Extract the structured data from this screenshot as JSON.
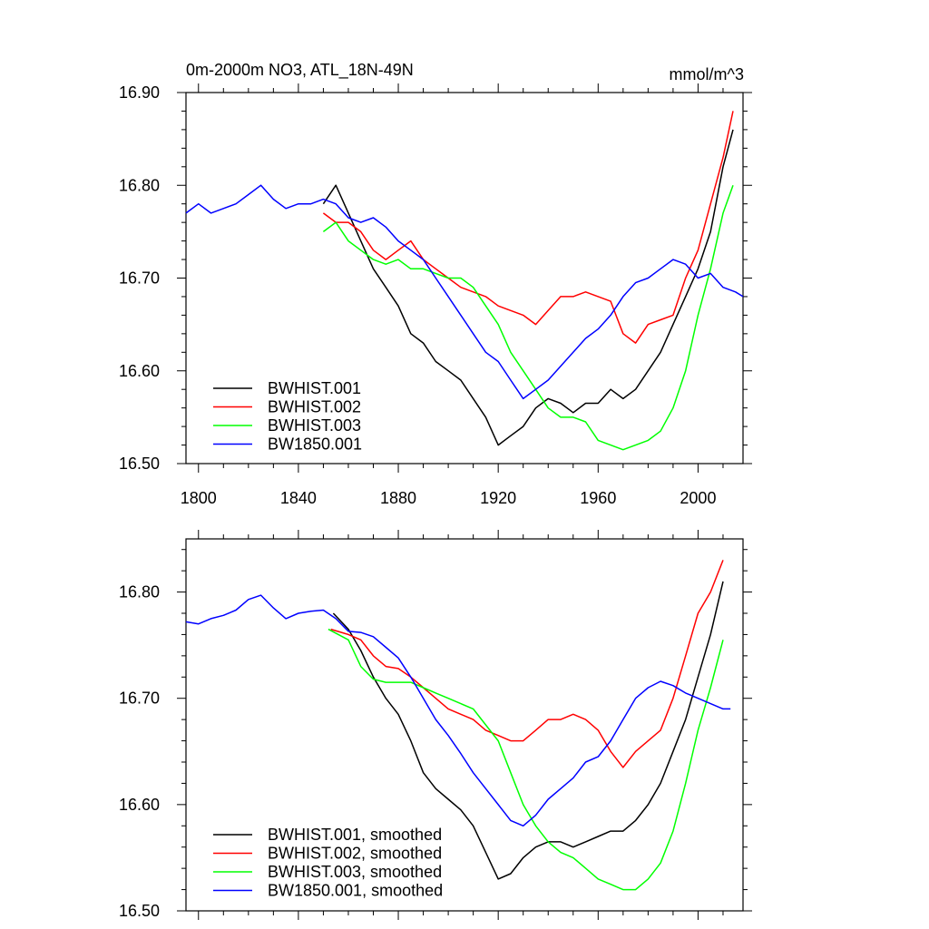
{
  "chart_data": [
    {
      "type": "line",
      "title": "0m-2000m NO3, ATL_18N-49N",
      "units": "mmol/m^3",
      "xlim": [
        1795,
        2018
      ],
      "ylim": [
        16.5,
        16.9
      ],
      "x_ticks": [
        1800,
        1840,
        1880,
        1920,
        1960,
        2000
      ],
      "x_tick_labels": [
        "1800",
        "1840",
        "1880",
        "1920",
        "1960",
        "2000"
      ],
      "y_ticks": [
        16.5,
        16.6,
        16.7,
        16.8,
        16.9
      ],
      "y_tick_labels": [
        "16.50",
        "16.60",
        "16.70",
        "16.80",
        "16.90"
      ],
      "legend_position": "bottom-left",
      "series": [
        {
          "name": "BWHIST.001",
          "color": "#000000",
          "x": [
            1850,
            1855,
            1860,
            1865,
            1870,
            1875,
            1880,
            1885,
            1890,
            1895,
            1900,
            1905,
            1910,
            1915,
            1920,
            1925,
            1930,
            1935,
            1940,
            1945,
            1950,
            1955,
            1960,
            1965,
            1970,
            1975,
            1980,
            1985,
            1990,
            1995,
            2000,
            2005,
            2010,
            2014
          ],
          "values": [
            16.78,
            16.8,
            16.77,
            16.74,
            16.71,
            16.69,
            16.67,
            16.64,
            16.63,
            16.61,
            16.6,
            16.59,
            16.57,
            16.55,
            16.52,
            16.53,
            16.54,
            16.56,
            16.57,
            16.565,
            16.555,
            16.565,
            16.565,
            16.58,
            16.57,
            16.58,
            16.6,
            16.62,
            16.65,
            16.68,
            16.71,
            16.75,
            16.82,
            16.86
          ]
        },
        {
          "name": "BWHIST.002",
          "color": "#ff0000",
          "x": [
            1850,
            1855,
            1860,
            1865,
            1870,
            1875,
            1880,
            1885,
            1890,
            1895,
            1900,
            1905,
            1910,
            1915,
            1920,
            1925,
            1930,
            1935,
            1940,
            1945,
            1950,
            1955,
            1960,
            1965,
            1970,
            1975,
            1980,
            1985,
            1990,
            1995,
            2000,
            2005,
            2010,
            2014
          ],
          "values": [
            16.77,
            16.76,
            16.76,
            16.75,
            16.73,
            16.72,
            16.73,
            16.74,
            16.72,
            16.71,
            16.7,
            16.69,
            16.685,
            16.68,
            16.67,
            16.665,
            16.66,
            16.65,
            16.665,
            16.68,
            16.68,
            16.685,
            16.68,
            16.675,
            16.64,
            16.63,
            16.65,
            16.655,
            16.66,
            16.7,
            16.73,
            16.78,
            16.83,
            16.88
          ]
        },
        {
          "name": "BWHIST.003",
          "color": "#00ff00",
          "x": [
            1850,
            1855,
            1860,
            1865,
            1870,
            1875,
            1880,
            1885,
            1890,
            1895,
            1900,
            1905,
            1910,
            1915,
            1920,
            1925,
            1930,
            1935,
            1940,
            1945,
            1950,
            1955,
            1960,
            1965,
            1970,
            1975,
            1980,
            1985,
            1990,
            1995,
            2000,
            2005,
            2010,
            2014
          ],
          "values": [
            16.75,
            16.76,
            16.74,
            16.73,
            16.72,
            16.715,
            16.72,
            16.71,
            16.71,
            16.705,
            16.7,
            16.7,
            16.69,
            16.67,
            16.65,
            16.62,
            16.6,
            16.58,
            16.56,
            16.55,
            16.55,
            16.545,
            16.525,
            16.52,
            16.515,
            16.52,
            16.525,
            16.535,
            16.56,
            16.6,
            16.66,
            16.71,
            16.77,
            16.8
          ]
        },
        {
          "name": "BW1850.001",
          "color": "#0000ff",
          "x": [
            1795,
            1800,
            1805,
            1810,
            1815,
            1820,
            1825,
            1830,
            1835,
            1840,
            1845,
            1850,
            1855,
            1860,
            1865,
            1870,
            1875,
            1880,
            1885,
            1890,
            1895,
            1900,
            1905,
            1910,
            1915,
            1920,
            1925,
            1930,
            1935,
            1940,
            1945,
            1950,
            1955,
            1960,
            1965,
            1970,
            1975,
            1980,
            1985,
            1990,
            1995,
            2000,
            2005,
            2010,
            2015,
            2018
          ],
          "values": [
            16.77,
            16.78,
            16.77,
            16.775,
            16.78,
            16.79,
            16.8,
            16.785,
            16.775,
            16.78,
            16.78,
            16.785,
            16.78,
            16.765,
            16.76,
            16.765,
            16.755,
            16.74,
            16.73,
            16.72,
            16.7,
            16.68,
            16.66,
            16.64,
            16.62,
            16.61,
            16.59,
            16.57,
            16.58,
            16.59,
            16.605,
            16.62,
            16.635,
            16.645,
            16.66,
            16.68,
            16.695,
            16.7,
            16.71,
            16.72,
            16.715,
            16.7,
            16.705,
            16.69,
            16.685,
            16.68
          ]
        }
      ]
    },
    {
      "type": "line",
      "title": "",
      "xlim": [
        1795,
        2018
      ],
      "ylim": [
        16.5,
        16.85
      ],
      "x_ticks": [
        1800,
        1840,
        1880,
        1920,
        1960,
        2000
      ],
      "y_ticks": [
        16.5,
        16.6,
        16.7,
        16.8
      ],
      "y_tick_labels": [
        "16.50",
        "16.60",
        "16.70",
        "16.80"
      ],
      "legend_position": "bottom-left",
      "series": [
        {
          "name": "BWHIST.001, smoothed",
          "color": "#000000",
          "x": [
            1854,
            1860,
            1865,
            1870,
            1875,
            1880,
            1885,
            1890,
            1895,
            1900,
            1905,
            1910,
            1915,
            1920,
            1925,
            1930,
            1935,
            1940,
            1945,
            1950,
            1955,
            1960,
            1965,
            1970,
            1975,
            1980,
            1985,
            1990,
            1995,
            2000,
            2005,
            2010
          ],
          "values": [
            16.78,
            16.765,
            16.745,
            16.72,
            16.7,
            16.685,
            16.66,
            16.63,
            16.615,
            16.605,
            16.595,
            16.58,
            16.555,
            16.53,
            16.535,
            16.55,
            16.56,
            16.565,
            16.565,
            16.56,
            16.565,
            16.57,
            16.575,
            16.575,
            16.585,
            16.6,
            16.62,
            16.65,
            16.68,
            16.72,
            16.76,
            16.81
          ]
        },
        {
          "name": "BWHIST.002, smoothed",
          "color": "#ff0000",
          "x": [
            1853,
            1860,
            1865,
            1870,
            1875,
            1880,
            1885,
            1890,
            1895,
            1900,
            1905,
            1910,
            1915,
            1920,
            1925,
            1930,
            1935,
            1940,
            1945,
            1950,
            1955,
            1960,
            1965,
            1970,
            1975,
            1980,
            1985,
            1990,
            1995,
            2000,
            2005,
            2010
          ],
          "values": [
            16.765,
            16.76,
            16.755,
            16.74,
            16.73,
            16.728,
            16.72,
            16.71,
            16.7,
            16.69,
            16.685,
            16.68,
            16.67,
            16.665,
            16.66,
            16.66,
            16.67,
            16.68,
            16.68,
            16.685,
            16.68,
            16.67,
            16.65,
            16.635,
            16.65,
            16.66,
            16.67,
            16.7,
            16.74,
            16.78,
            16.8,
            16.83
          ]
        },
        {
          "name": "BWHIST.003, smoothed",
          "color": "#00ff00",
          "x": [
            1852,
            1860,
            1865,
            1870,
            1875,
            1880,
            1885,
            1890,
            1895,
            1900,
            1905,
            1910,
            1915,
            1920,
            1925,
            1930,
            1935,
            1940,
            1945,
            1950,
            1955,
            1960,
            1965,
            1970,
            1975,
            1980,
            1985,
            1990,
            1995,
            2000,
            2005,
            2010
          ],
          "values": [
            16.765,
            16.755,
            16.73,
            16.718,
            16.715,
            16.715,
            16.715,
            16.71,
            16.705,
            16.7,
            16.695,
            16.69,
            16.675,
            16.66,
            16.63,
            16.6,
            16.58,
            16.565,
            16.555,
            16.55,
            16.54,
            16.53,
            16.525,
            16.52,
            16.52,
            16.53,
            16.545,
            16.575,
            16.62,
            16.67,
            16.71,
            16.755
          ]
        },
        {
          "name": "BW1850.001, smoothed",
          "color": "#0000ff",
          "x": [
            1795,
            1800,
            1805,
            1810,
            1815,
            1820,
            1825,
            1830,
            1835,
            1840,
            1845,
            1850,
            1855,
            1860,
            1865,
            1870,
            1875,
            1880,
            1885,
            1890,
            1895,
            1900,
            1905,
            1910,
            1915,
            1920,
            1925,
            1930,
            1935,
            1940,
            1945,
            1950,
            1955,
            1960,
            1965,
            1970,
            1975,
            1980,
            1985,
            1990,
            1995,
            2000,
            2005,
            2010,
            2013
          ],
          "values": [
            16.772,
            16.77,
            16.775,
            16.778,
            16.783,
            16.793,
            16.797,
            16.785,
            16.775,
            16.78,
            16.782,
            16.783,
            16.775,
            16.763,
            16.762,
            16.758,
            16.748,
            16.738,
            16.72,
            16.7,
            16.68,
            16.665,
            16.648,
            16.63,
            16.615,
            16.6,
            16.585,
            16.58,
            16.59,
            16.605,
            16.615,
            16.625,
            16.64,
            16.645,
            16.66,
            16.68,
            16.7,
            16.71,
            16.716,
            16.712,
            16.705,
            16.7,
            16.695,
            16.69,
            16.69
          ]
        }
      ]
    }
  ]
}
